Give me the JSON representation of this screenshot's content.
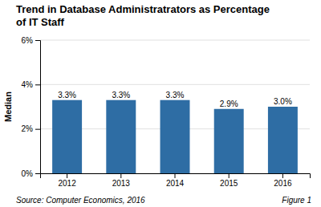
{
  "chart_data": {
    "type": "bar",
    "title": "Trend in Database Administratrators as Percentage\nof IT Staff",
    "categories": [
      "2012",
      "2013",
      "2014",
      "2015",
      "2016"
    ],
    "values": [
      3.3,
      3.3,
      3.3,
      2.9,
      3.0
    ],
    "value_labels": [
      "3.3%",
      "3.3%",
      "3.3%",
      "2.9%",
      "3.0%"
    ],
    "data_labels": true,
    "color": "#2E6DA4",
    "ylabel": "Median",
    "ylim": [
      0,
      6
    ],
    "yticks": [
      {
        "value": 0,
        "label": "0%"
      },
      {
        "value": 2,
        "label": "2%"
      },
      {
        "value": 4,
        "label": "4%"
      },
      {
        "value": 6,
        "label": "6%"
      }
    ],
    "grid": true,
    "annotations": [
      "Source: Computer Economics, 2016",
      "Figure 1"
    ]
  }
}
